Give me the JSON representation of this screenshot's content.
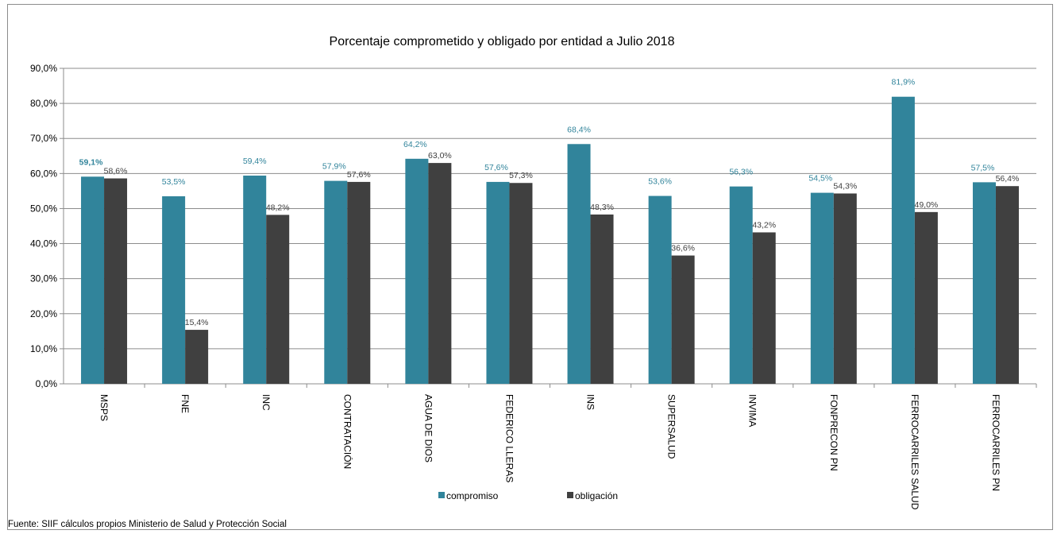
{
  "source_note": "Fuente:  SIIF cálculos propios Ministerio de Salud y Protección Social",
  "chart_data": {
    "type": "bar",
    "title": "Porcentaje comprometido y obligado por entidad a Julio 2018",
    "xlabel": "",
    "ylabel": "",
    "ylim": [
      0,
      90
    ],
    "y_ticks": [
      0,
      10,
      20,
      30,
      40,
      50,
      60,
      70,
      80,
      90
    ],
    "y_tick_labels": [
      "0,0%",
      "10,0%",
      "20,0%",
      "30,0%",
      "40,0%",
      "50,0%",
      "60,0%",
      "70,0%",
      "80,0%",
      "90,0%"
    ],
    "grid": true,
    "legend_position": "bottom",
    "categories": [
      "MSPS",
      "FNE",
      "INC",
      "CONTRATACIÓN",
      "AGUA DE DIOS",
      "FEDERICO LLERAS",
      "INS",
      "SUPERSALUD",
      "INVIMA",
      "FONPRECON PN",
      "FERROCARRILES SALUD",
      "FERROCARRILES PN"
    ],
    "series": [
      {
        "name": "compromiso",
        "color": "#31849b",
        "label_color": "#31849b",
        "values": [
          59.1,
          53.5,
          59.4,
          57.9,
          64.2,
          57.6,
          68.4,
          53.6,
          56.3,
          54.5,
          81.9,
          57.5
        ],
        "labels": [
          "59,1%",
          "53,5%",
          "59,4%",
          "57,9%",
          "64,2%",
          "57,6%",
          "68,4%",
          "53,6%",
          "56,3%",
          "54,5%",
          "81,9%",
          "57,5%"
        ]
      },
      {
        "name": "obligación",
        "color": "#404040",
        "label_color": "#404040",
        "values": [
          58.6,
          15.4,
          48.2,
          57.6,
          63.0,
          57.3,
          48.3,
          36.6,
          43.2,
          54.3,
          49.0,
          56.4
        ],
        "labels": [
          "58,6%",
          "15,4%",
          "48,2%",
          "57,6%",
          "63,0%",
          "57,3%",
          "48,3%",
          "36,6%",
          "43,2%",
          "54,3%",
          "49,0%",
          "56,4%"
        ]
      }
    ]
  }
}
